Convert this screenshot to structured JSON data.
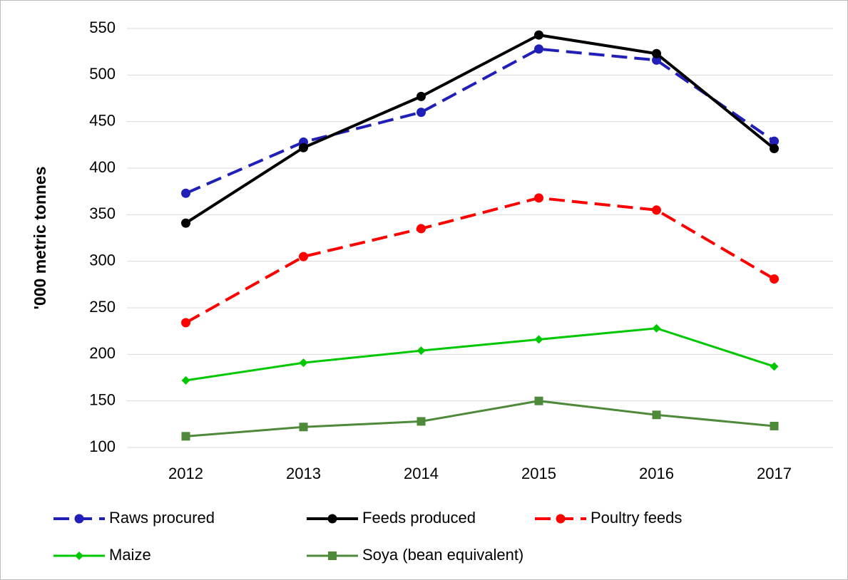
{
  "chart_data": {
    "type": "line",
    "y_label": "'000 metric tonnes",
    "categories": [
      "2012",
      "2013",
      "2014",
      "2015",
      "2016",
      "2017"
    ],
    "series": [
      {
        "name": "Raws procured",
        "color": "#2020b8",
        "dashed": true,
        "marker": "circle",
        "values": [
          373,
          428,
          460,
          528,
          516,
          429
        ]
      },
      {
        "name": "Feeds produced",
        "color": "#000000",
        "dashed": false,
        "marker": "circle",
        "values": [
          341,
          422,
          477,
          543,
          523,
          421
        ]
      },
      {
        "name": "Poultry feeds",
        "color": "#ff0000",
        "dashed": true,
        "marker": "circle",
        "values": [
          234,
          305,
          335,
          368,
          355,
          281
        ]
      },
      {
        "name": "Maize",
        "color": "#00c800",
        "dashed": false,
        "marker": "diamond",
        "values": [
          172,
          191,
          204,
          216,
          228,
          187
        ]
      },
      {
        "name": "Soya (bean equivalent)",
        "color": "#4e8a3a",
        "dashed": false,
        "marker": "square",
        "values": [
          112,
          122,
          128,
          150,
          135,
          123
        ]
      }
    ],
    "ylim": [
      100,
      550
    ],
    "yticks": [
      100,
      150,
      200,
      250,
      300,
      350,
      400,
      450,
      500,
      550
    ],
    "grid": true,
    "legend": "bottom"
  }
}
